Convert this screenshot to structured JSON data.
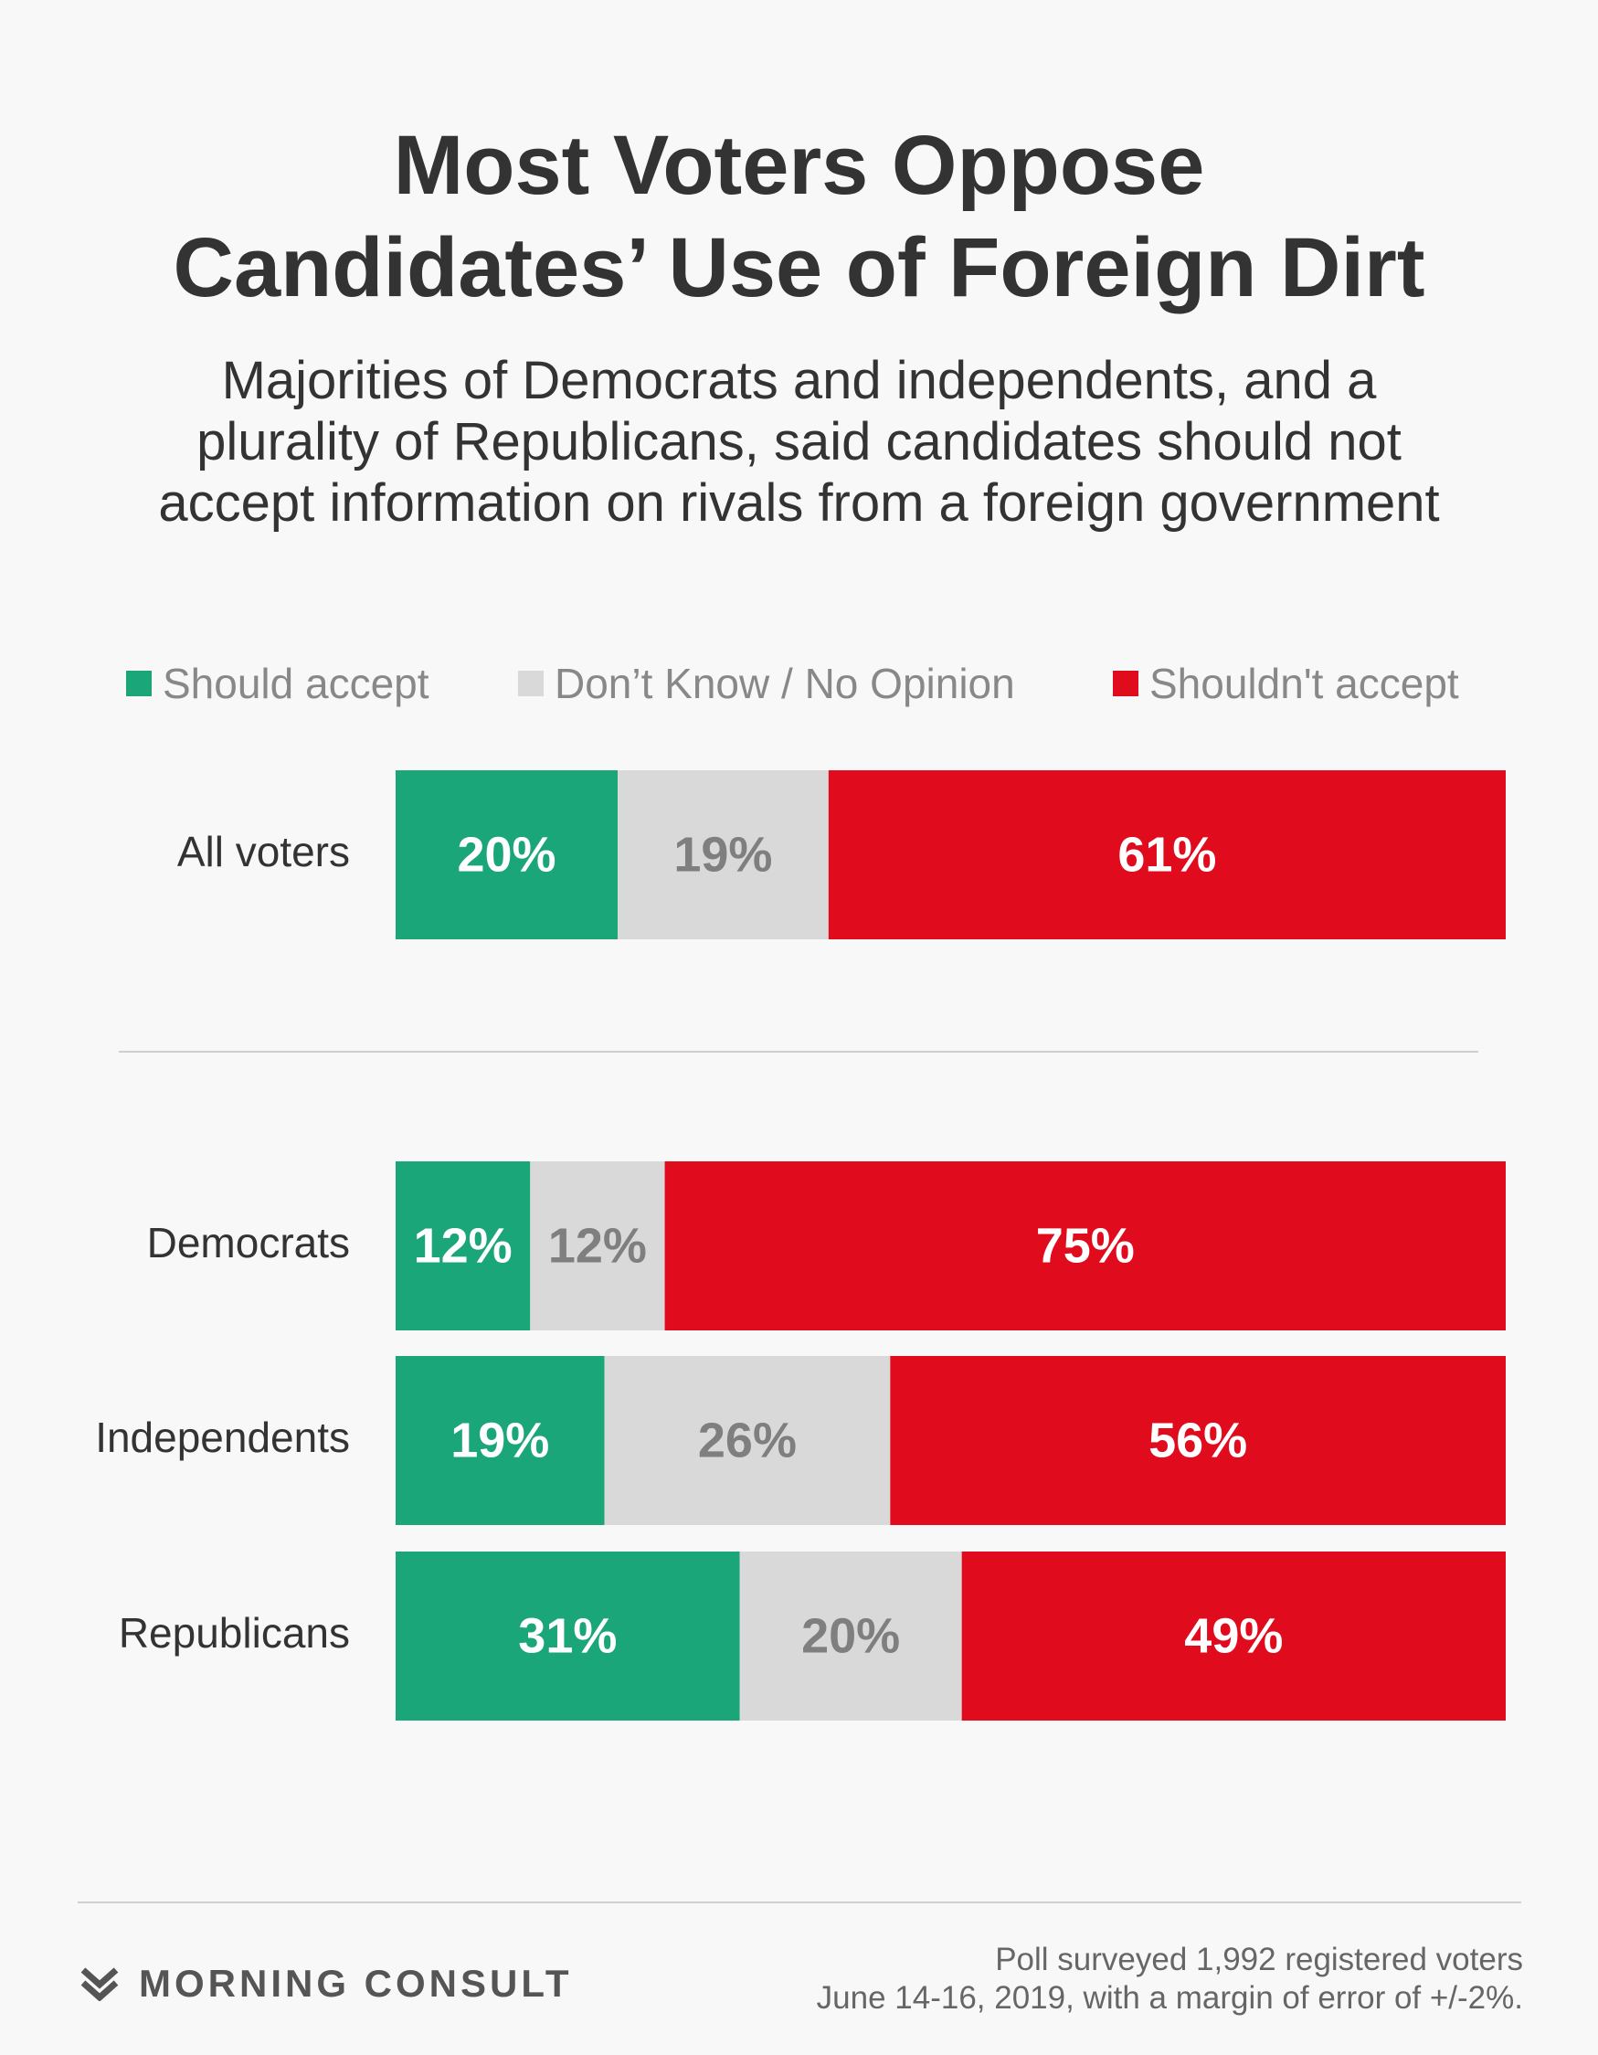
{
  "title_line1": "Most Voters Oppose",
  "title_line2": "Candidates’ Use of Foreign Dirt",
  "subtitle_line1": "Majorities of Democrats and independents, and a",
  "subtitle_line2": "plurality of Republicans, said candidates should not",
  "subtitle_line3": "accept information on rivals from a foreign government",
  "colors": {
    "should_accept": "#1ba67a",
    "dont_know": "#d9d9d9",
    "shouldnt_accept": "#e00b1c",
    "label_light": "#ffffff",
    "label_dark": "#7f7f7f"
  },
  "chart_data": {
    "type": "bar",
    "orientation": "horizontal",
    "stacked": true,
    "percent_of_total": true,
    "categories": [
      "All voters",
      "Democrats",
      "Independents",
      "Republicans"
    ],
    "series": [
      {
        "name": "Should accept",
        "values": [
          20,
          12,
          19,
          31
        ],
        "labels": [
          "20%",
          "12%",
          "19%",
          "31%"
        ]
      },
      {
        "name": "Don’t Know / No Opinion",
        "values": [
          19,
          12,
          26,
          20
        ],
        "labels": [
          "19%",
          "12%",
          "26%",
          "20%"
        ]
      },
      {
        "name": "Shouldn't accept",
        "values": [
          61,
          75,
          56,
          49
        ],
        "labels": [
          "61%",
          "75%",
          "56%",
          "49%"
        ]
      }
    ],
    "legend_placement": "top",
    "grid": false
  },
  "footer": {
    "brand": "MORNING CONSULT",
    "brand_icon": "morning-consult-chevron-icon",
    "note_line1": "Poll surveyed 1,992 registered voters",
    "note_line2": "June 14-16, 2019, with a margin of error of +/-2%."
  }
}
